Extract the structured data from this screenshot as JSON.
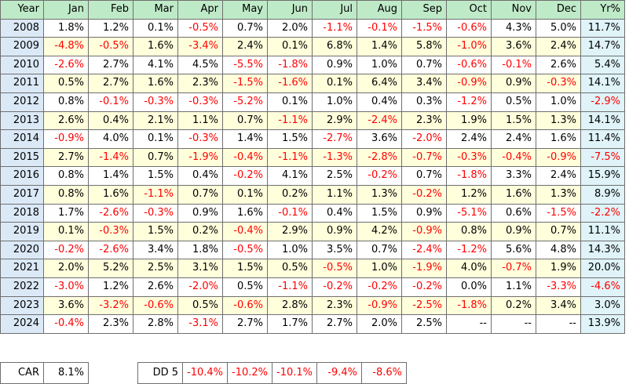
{
  "table": {
    "headers": [
      "Year",
      "Jan",
      "Feb",
      "Mar",
      "Apr",
      "May",
      "Jun",
      "Jul",
      "Aug",
      "Sep",
      "Oct",
      "Nov",
      "Dec",
      "Yr%"
    ],
    "rows": [
      [
        "2008",
        "1.8%",
        "1.2%",
        "0.1%",
        "-0.5%",
        "0.7%",
        "2.0%",
        "-1.1%",
        "-0.1%",
        "-1.5%",
        "-0.6%",
        "4.3%",
        "5.0%",
        "11.7%"
      ],
      [
        "2009",
        "-4.8%",
        "-0.5%",
        "1.6%",
        "-3.4%",
        "2.4%",
        "0.1%",
        "6.8%",
        "1.4%",
        "5.8%",
        "-1.0%",
        "3.6%",
        "2.4%",
        "14.7%"
      ],
      [
        "2010",
        "-2.6%",
        "2.7%",
        "4.1%",
        "4.5%",
        "-5.5%",
        "-1.8%",
        "0.9%",
        "1.0%",
        "0.7%",
        "-0.6%",
        "-0.1%",
        "2.6%",
        "5.4%"
      ],
      [
        "2011",
        "0.5%",
        "2.7%",
        "1.6%",
        "2.3%",
        "-1.5%",
        "-1.6%",
        "0.1%",
        "6.4%",
        "3.4%",
        "-0.9%",
        "0.9%",
        "-0.3%",
        "14.1%"
      ],
      [
        "2012",
        "0.8%",
        "-0.1%",
        "-0.3%",
        "-0.3%",
        "-5.2%",
        "0.1%",
        "1.0%",
        "0.4%",
        "0.3%",
        "-1.2%",
        "0.5%",
        "1.0%",
        "-2.9%"
      ],
      [
        "2013",
        "2.6%",
        "0.4%",
        "2.1%",
        "1.1%",
        "0.7%",
        "-1.1%",
        "2.9%",
        "-2.4%",
        "2.3%",
        "1.9%",
        "1.5%",
        "1.3%",
        "14.1%"
      ],
      [
        "2014",
        "-0.9%",
        "4.0%",
        "0.1%",
        "-0.3%",
        "1.4%",
        "1.5%",
        "-2.7%",
        "3.6%",
        "-2.0%",
        "2.4%",
        "2.4%",
        "1.6%",
        "11.4%"
      ],
      [
        "2015",
        "2.7%",
        "-1.4%",
        "0.7%",
        "-1.9%",
        "-0.4%",
        "-1.1%",
        "-1.3%",
        "-2.8%",
        "-0.7%",
        "-0.3%",
        "-0.4%",
        "-0.9%",
        "-7.5%"
      ],
      [
        "2016",
        "0.8%",
        "1.4%",
        "1.5%",
        "0.4%",
        "-0.2%",
        "4.1%",
        "2.5%",
        "-0.2%",
        "0.7%",
        "-1.8%",
        "3.3%",
        "2.4%",
        "15.9%"
      ],
      [
        "2017",
        "0.8%",
        "1.6%",
        "-1.1%",
        "0.7%",
        "0.1%",
        "0.2%",
        "1.1%",
        "1.3%",
        "-0.2%",
        "1.2%",
        "1.6%",
        "1.3%",
        "8.9%"
      ],
      [
        "2018",
        "1.7%",
        "-2.6%",
        "-0.3%",
        "0.9%",
        "1.6%",
        "-0.1%",
        "0.4%",
        "1.5%",
        "0.9%",
        "-5.1%",
        "0.6%",
        "-1.5%",
        "-2.2%"
      ],
      [
        "2019",
        "0.1%",
        "-0.3%",
        "1.5%",
        "0.2%",
        "-0.4%",
        "2.9%",
        "0.9%",
        "4.2%",
        "-0.9%",
        "0.8%",
        "0.9%",
        "0.7%",
        "11.1%"
      ],
      [
        "2020",
        "-0.2%",
        "-2.6%",
        "3.4%",
        "1.8%",
        "-0.5%",
        "1.0%",
        "3.5%",
        "0.7%",
        "-2.4%",
        "-1.2%",
        "5.6%",
        "4.8%",
        "14.3%"
      ],
      [
        "2021",
        "2.0%",
        "5.2%",
        "2.5%",
        "3.1%",
        "1.5%",
        "0.5%",
        "-0.5%",
        "1.0%",
        "-1.9%",
        "4.0%",
        "-0.7%",
        "1.9%",
        "20.0%"
      ],
      [
        "2022",
        "-3.0%",
        "1.2%",
        "2.6%",
        "-2.0%",
        "0.5%",
        "-1.1%",
        "-0.2%",
        "-0.2%",
        "-0.2%",
        "0.0%",
        "1.1%",
        "-3.3%",
        "-4.6%"
      ],
      [
        "2023",
        "3.6%",
        "-3.2%",
        "-0.6%",
        "0.5%",
        "-0.6%",
        "2.8%",
        "2.3%",
        "-0.9%",
        "-2.5%",
        "-1.8%",
        "0.2%",
        "3.4%",
        "3.0%"
      ],
      [
        "2024",
        "-0.4%",
        "2.3%",
        "2.8%",
        "-3.1%",
        "2.7%",
        "1.7%",
        "2.7%",
        "2.0%",
        "2.5%",
        "--",
        "--",
        "--",
        "13.9%"
      ]
    ]
  },
  "summary": {
    "car_label": "CAR",
    "car_value": "8.1%"
  },
  "drawdowns": {
    "label": "DD 5",
    "values": [
      "-10.4%",
      "-10.2%",
      "-10.1%",
      "-9.4%",
      "-8.6%"
    ]
  },
  "colors": {
    "header_bg": "#bfeac8",
    "odd_row_bg": "#ffffff",
    "even_row_bg": "#ffffdc",
    "year_col_bg": "#dbe9f7",
    "total_col_bg": "#dff3f8",
    "negative_text": "#ff0000",
    "grid_line": "#6f6f6f"
  }
}
